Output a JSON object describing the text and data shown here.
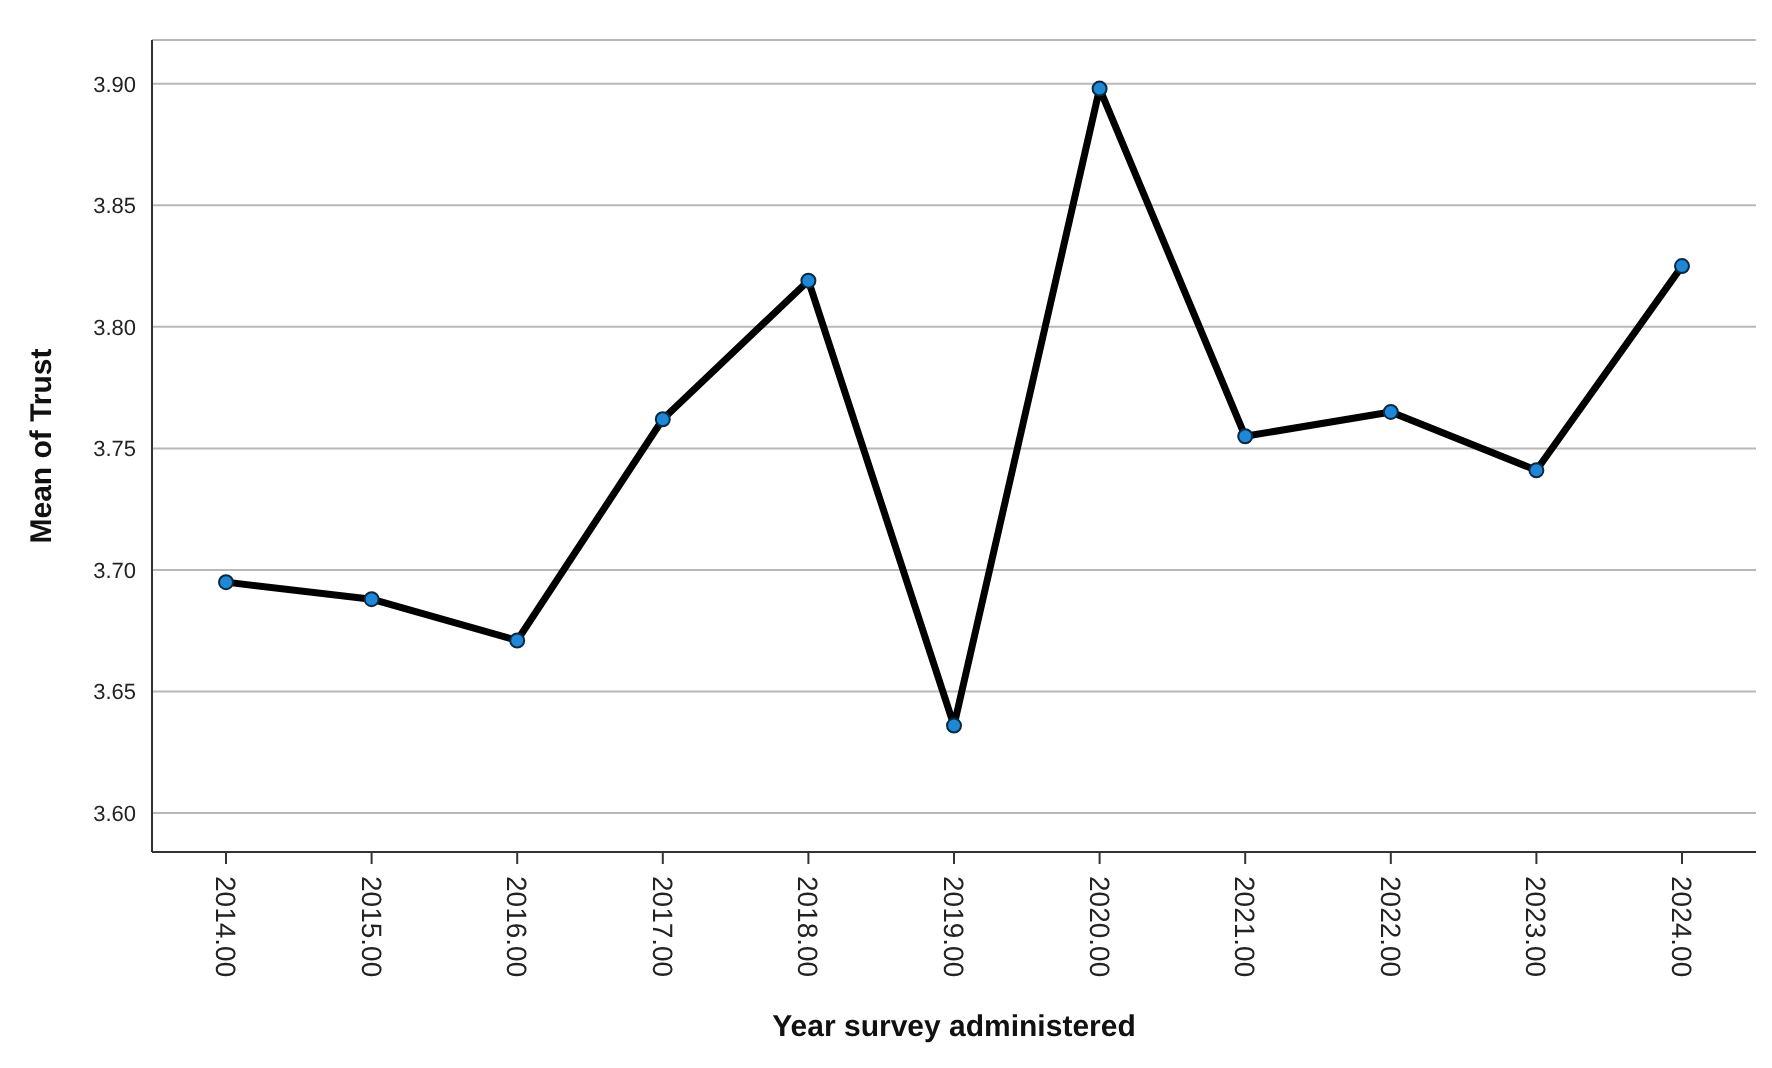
{
  "chart_data": {
    "type": "line",
    "xlabel": "Year survey administered",
    "ylabel": "Mean of Trust",
    "categories": [
      "2014.00",
      "2015.00",
      "2016.00",
      "2017.00",
      "2018.00",
      "2019.00",
      "2020.00",
      "2021.00",
      "2022.00",
      "2023.00",
      "2024.00"
    ],
    "series": [
      {
        "color": "#000000",
        "values": [
          3.695,
          3.688,
          3.671,
          3.762,
          3.819,
          3.636,
          3.898,
          3.755,
          3.765,
          3.741,
          3.825
        ]
      }
    ],
    "ylim": [
      3.584,
      3.918
    ],
    "yticks": [
      {
        "value": 3.6,
        "label": "3.60"
      },
      {
        "value": 3.65,
        "label": "3.65"
      },
      {
        "value": 3.7,
        "label": "3.70"
      },
      {
        "value": 3.75,
        "label": "3.75"
      },
      {
        "value": 3.8,
        "label": "3.80"
      },
      {
        "value": 3.85,
        "label": "3.85"
      },
      {
        "value": 3.9,
        "label": "3.90"
      }
    ],
    "grid": "y",
    "marker": "circle",
    "line_style": "solid",
    "legend": false
  }
}
